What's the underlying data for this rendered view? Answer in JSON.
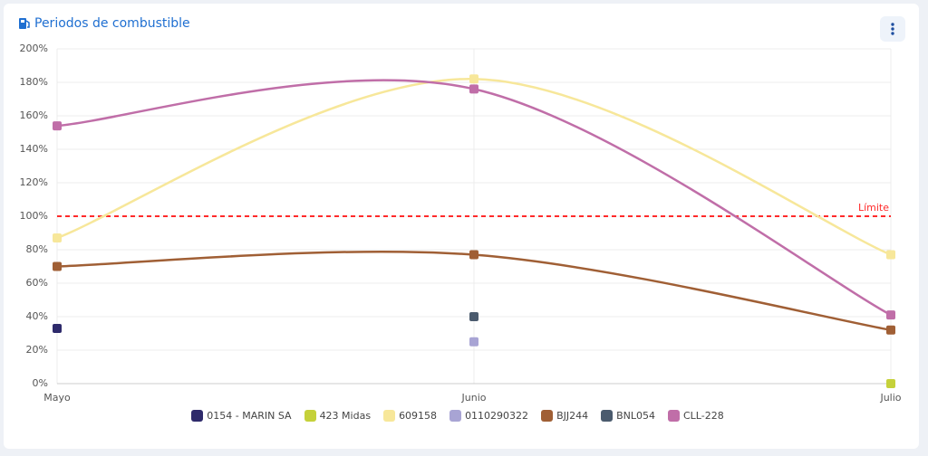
{
  "chart_data": {
    "type": "line",
    "title": "Periodos de combustible",
    "categories": [
      "Mayo",
      "Junio",
      "Julio"
    ],
    "series": [
      {
        "name": "0154 - MARIN SA",
        "color": "#2e2a6b",
        "values": [
          33,
          null,
          null
        ]
      },
      {
        "name": "423 Midas",
        "color": "#c5d13a",
        "values": [
          null,
          null,
          0
        ]
      },
      {
        "name": "609158",
        "color": "#f7e79a",
        "values": [
          87,
          182,
          77
        ]
      },
      {
        "name": "0110290322",
        "color": "#a8a4d4",
        "values": [
          null,
          25,
          null
        ]
      },
      {
        "name": "BJJ244",
        "color": "#a05f35",
        "values": [
          70,
          77,
          32
        ]
      },
      {
        "name": "BNL054",
        "color": "#4b5b6e",
        "values": [
          null,
          40,
          null
        ]
      },
      {
        "name": "CLL-228",
        "color": "#c06ea8",
        "values": [
          154,
          176,
          41
        ]
      }
    ],
    "ylim": [
      0,
      200
    ],
    "yticks": [
      {
        "value": 0,
        "label": "0%"
      },
      {
        "value": 20,
        "label": "20%"
      },
      {
        "value": 40,
        "label": "40%"
      },
      {
        "value": 60,
        "label": "60%"
      },
      {
        "value": 80,
        "label": "80%"
      },
      {
        "value": 100,
        "label": "100%"
      },
      {
        "value": 120,
        "label": "120%"
      },
      {
        "value": 140,
        "label": "140%"
      },
      {
        "value": 160,
        "label": "160%"
      },
      {
        "value": 180,
        "label": "180%"
      },
      {
        "value": 200,
        "label": "200%"
      }
    ],
    "grid": true,
    "reference_line": {
      "value": 100,
      "label": "Límite",
      "color": "#ff2a2a"
    }
  }
}
